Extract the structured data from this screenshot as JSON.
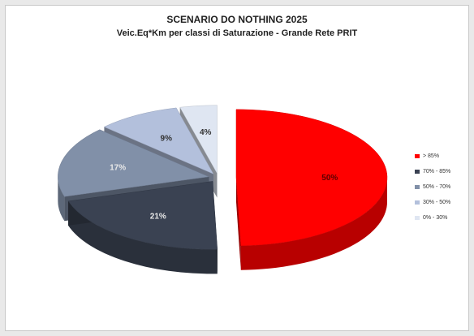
{
  "chart_data": {
    "type": "pie",
    "title": "SCENARIO DO NOTHING 2025",
    "subtitle": "Veic.Eq*Km per classi di Saturazione - Grande Rete PRIT",
    "categories": [
      "> 85%",
      "70% - 85%",
      "50% - 70%",
      "30% - 50%",
      "0% - 30%"
    ],
    "values": [
      50,
      21,
      17,
      9,
      4
    ],
    "labels": [
      "50%",
      "21%",
      "17%",
      "9%",
      "4%"
    ],
    "colors": [
      "#ff0000",
      "#3a4252",
      "#8190a8",
      "#b3c0dc",
      "#dfe6f2"
    ],
    "legend": "right"
  }
}
